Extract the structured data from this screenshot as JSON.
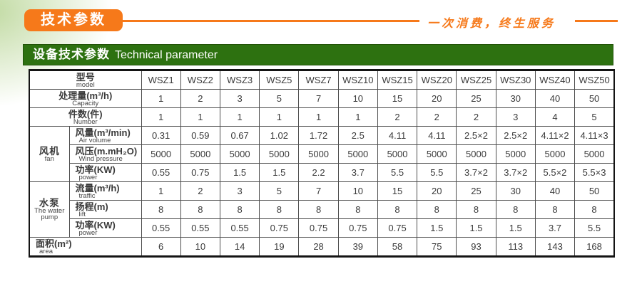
{
  "page": {
    "badge_label": "技术参数",
    "slogan": "一次消费，终生服务",
    "section_title_zh": "设备技术参数",
    "section_title_en": "Technical parameter"
  },
  "colors": {
    "accent_orange": "#f6791a",
    "header_green": "#2d7110",
    "table_outer_border": "#141414",
    "table_grid": "#4d4d4d",
    "table_text": "#3a3a3a"
  },
  "chart_data": {
    "type": "table",
    "header": {
      "label_zh": "型号",
      "label_en": "model",
      "models": [
        "WSZ1",
        "WSZ2",
        "WSZ3",
        "WSZ5",
        "WSZ7",
        "WSZ10",
        "WSZ15",
        "WSZ20",
        "WSZ25",
        "WSZ30",
        "WSZ40",
        "WSZ50"
      ]
    },
    "rows": [
      {
        "type": "full",
        "zh": "处理量(m³/h)",
        "en": "Capacity",
        "values": [
          "1",
          "2",
          "3",
          "5",
          "7",
          "10",
          "15",
          "20",
          "25",
          "30",
          "40",
          "50"
        ]
      },
      {
        "type": "full",
        "zh": "件数(件)",
        "en": "Number",
        "values": [
          "1",
          "1",
          "1",
          "1",
          "1",
          "1",
          "2",
          "2",
          "2",
          "3",
          "4",
          "5"
        ]
      },
      {
        "type": "group-start",
        "group_zh": "风机",
        "group_en": "fan",
        "group_rows": 3,
        "zh": "风量(m³/min)",
        "en": "Air volume",
        "values": [
          "0.31",
          "0.59",
          "0.67",
          "1.02",
          "1.72",
          "2.5",
          "4.11",
          "4.11",
          "2.5×2",
          "2.5×2",
          "4.11×2",
          "4.11×3"
        ]
      },
      {
        "type": "group-cont",
        "zh": "风压(m.mH₂O)",
        "en": "Wind pressure",
        "values": [
          "5000",
          "5000",
          "5000",
          "5000",
          "5000",
          "5000",
          "5000",
          "5000",
          "5000",
          "5000",
          "5000",
          "5000"
        ]
      },
      {
        "type": "group-cont",
        "zh": "功率(KW)",
        "en": "power",
        "values": [
          "0.55",
          "0.75",
          "1.5",
          "1.5",
          "2.2",
          "3.7",
          "5.5",
          "5.5",
          "3.7×2",
          "3.7×2",
          "5.5×2",
          "5.5×3"
        ]
      },
      {
        "type": "group-start",
        "group_zh": "水泵",
        "group_en": "The water pump",
        "group_rows": 3,
        "zh": "流量(m³/h)",
        "en": "traffic",
        "values": [
          "1",
          "2",
          "3",
          "5",
          "7",
          "10",
          "15",
          "20",
          "25",
          "30",
          "40",
          "50"
        ]
      },
      {
        "type": "group-cont",
        "zh": "扬程(m)",
        "en": "lift",
        "values": [
          "8",
          "8",
          "8",
          "8",
          "8",
          "8",
          "8",
          "8",
          "8",
          "8",
          "8",
          "8"
        ]
      },
      {
        "type": "group-cont",
        "zh": "功率(KW)",
        "en": "power",
        "values": [
          "0.55",
          "0.55",
          "0.55",
          "0.75",
          "0.75",
          "0.75",
          "0.75",
          "1.5",
          "1.5",
          "1.5",
          "3.7",
          "5.5"
        ]
      },
      {
        "type": "full",
        "align": "left",
        "zh": "面积(m²)",
        "en": "area",
        "values": [
          "6",
          "10",
          "14",
          "19",
          "28",
          "39",
          "58",
          "75",
          "93",
          "113",
          "143",
          "168"
        ]
      }
    ]
  }
}
